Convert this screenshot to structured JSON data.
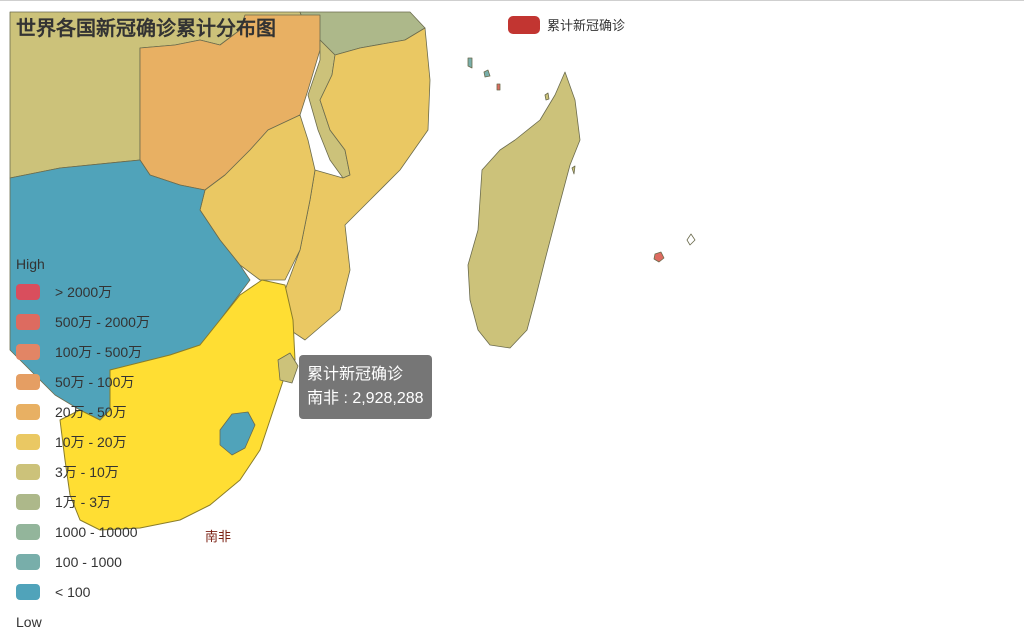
{
  "title": "世界各国新冠确诊累计分布图",
  "series_legend": {
    "label": "累计新冠确诊",
    "color": "#c23531"
  },
  "visual_map": {
    "high_label": "High",
    "low_label": "Low",
    "pieces": [
      {
        "label": "> 2000万",
        "color": "#d94e5d"
      },
      {
        "label": "500万 - 2000万",
        "color": "#dd6b60"
      },
      {
        "label": "100万 - 500万",
        "color": "#e28565"
      },
      {
        "label": "50万 - 100万",
        "color": "#e59e63"
      },
      {
        "label": "20万 - 50万",
        "color": "#e8b063"
      },
      {
        "label": "10万 - 20万",
        "color": "#eac863"
      },
      {
        "label": "3万 - 10万",
        "color": "#ccc27a"
      },
      {
        "label": "1万 - 3万",
        "color": "#adb88a"
      },
      {
        "label": "1000 - 10000",
        "color": "#93b59b"
      },
      {
        "label": "100 - 1000",
        "color": "#78aeaa"
      },
      {
        "label": "< 100",
        "color": "#50a3ba"
      }
    ]
  },
  "map_label": "南非",
  "tooltip": {
    "series": "累计新冠确诊",
    "text": "南非 : 2,928,288"
  },
  "countries": {
    "south_africa": "南非"
  },
  "region_colors": {
    "highlight": "#ffde33",
    "angola_zambia": "#e8b063",
    "mozambique_tanzania": "#eac863",
    "madagascar": "#ccc27a",
    "dr_congo": "#ccc27a",
    "namibia_botswana": "#50a3ba",
    "malawi": "#ccc27a",
    "small_island_red": "#dd6b60"
  }
}
